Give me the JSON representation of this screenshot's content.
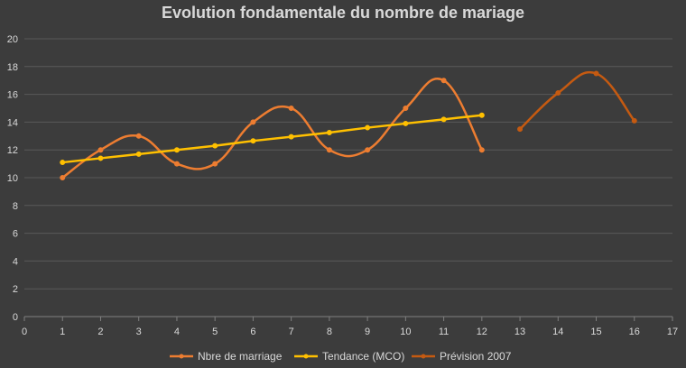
{
  "chart_data": {
    "type": "line",
    "title": "Evolution fondamentale du nombre de mariage",
    "xlabel": "",
    "ylabel": "",
    "xlim": [
      0,
      17
    ],
    "ylim": [
      0,
      20
    ],
    "x_ticks": [
      0,
      1,
      2,
      3,
      4,
      5,
      6,
      7,
      8,
      9,
      10,
      11,
      12,
      13,
      14,
      15,
      16,
      17
    ],
    "y_ticks": [
      0,
      2,
      4,
      6,
      8,
      10,
      12,
      14,
      16,
      18,
      20
    ],
    "grid": "horizontal",
    "legend_position": "bottom",
    "series": [
      {
        "name": "Nbre de marriage",
        "color": "#ed7d31",
        "smooth": true,
        "x": [
          1,
          2,
          3,
          4,
          5,
          6,
          7,
          8,
          9,
          10,
          11,
          12
        ],
        "y": [
          10,
          12,
          13,
          11,
          11,
          14,
          15,
          12,
          12,
          15,
          17,
          12
        ]
      },
      {
        "name": "Tendance (MCO)",
        "color": "#ffc000",
        "smooth": false,
        "x": [
          1,
          2,
          3,
          4,
          5,
          6,
          7,
          8,
          9,
          10,
          11,
          12
        ],
        "y": [
          11.1,
          11.4,
          11.7,
          12.0,
          12.3,
          12.65,
          12.95,
          13.25,
          13.6,
          13.9,
          14.2,
          14.5
        ]
      },
      {
        "name": "Prévision 2007",
        "color": "#c55a11",
        "smooth": true,
        "x": [
          13,
          14,
          15,
          16
        ],
        "y": [
          13.5,
          16.1,
          17.5,
          14.1
        ]
      }
    ]
  },
  "colors": {
    "background": "#3c3c3c",
    "gridline": "#595959",
    "axis": "#7f7f7f",
    "text": "#d9d9d9"
  }
}
